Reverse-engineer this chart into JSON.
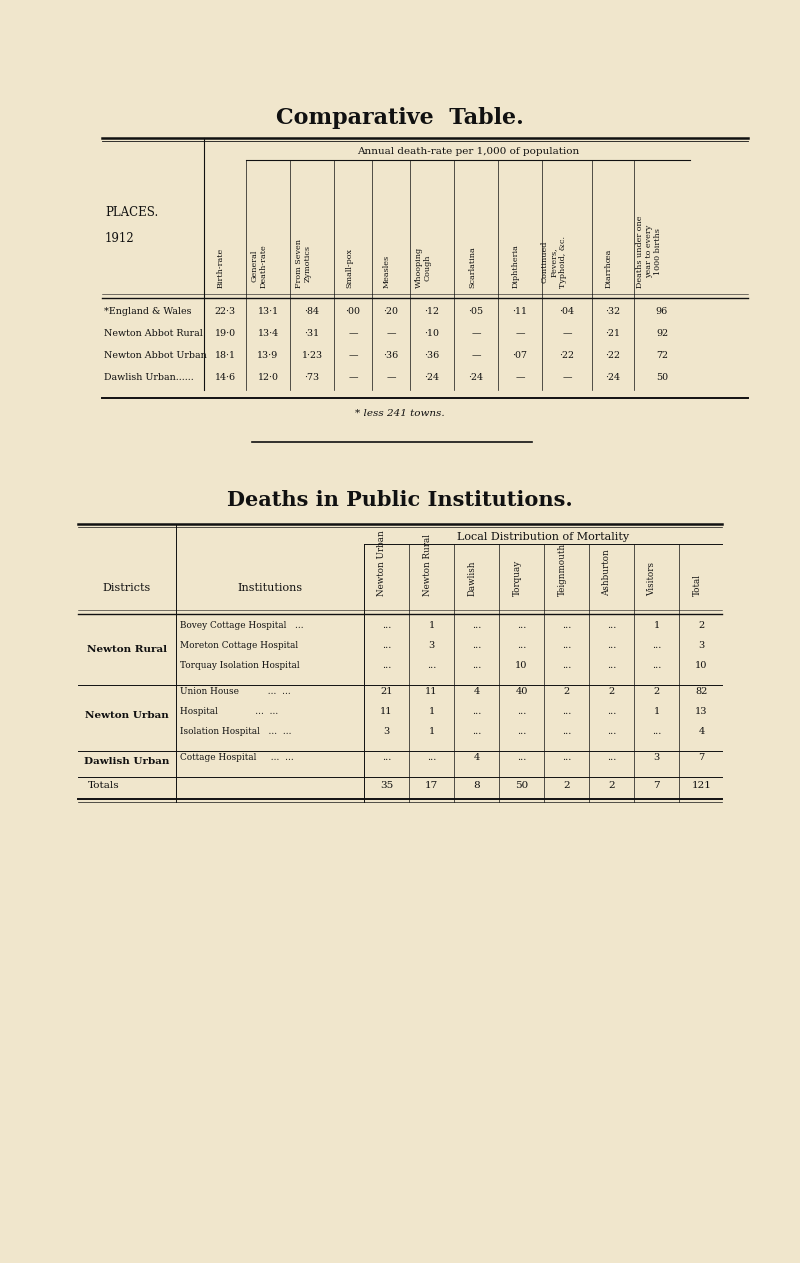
{
  "bg_color": "#f0e6cc",
  "title1": "Comparative  Table.",
  "title2": "Deaths in Public Institutions.",
  "separator_note": "* less 241 towns.",
  "table1": {
    "col_headers": [
      "Birth-rate",
      "General\nDeath-rate",
      "From Seven\nZymotics",
      "Small-pox",
      "Measles",
      "Whooping\nCough",
      "Scarlatina",
      "Diphtheria",
      "Continued\nFevers,\nTyphoid, &c.",
      "Diarrhœa",
      "Deaths under one\nyear to every\n1000 births"
    ],
    "annual_header": "Annual death-rate per 1,000 of population",
    "rows": [
      {
        "place": "*England & Wales",
        "values": [
          "22·3",
          "13·1",
          "·84",
          "·00",
          "·20",
          "·12",
          "·05",
          "·11",
          "·04",
          "·32",
          "96"
        ]
      },
      {
        "place": "Newton Abbot Rural",
        "values": [
          "19·0",
          "13·4",
          "·31",
          "—",
          "—",
          "·10",
          "—",
          "—",
          "—",
          "·21",
          "92"
        ]
      },
      {
        "place": "Newton Abbot Urban",
        "values": [
          "18·1",
          "13·9",
          "1·23",
          "—",
          "·36",
          "·36",
          "—",
          "·07",
          "·22",
          "·22",
          "72"
        ]
      },
      {
        "place": "Dawlish Urban......",
        "values": [
          "14·6",
          "12·0",
          "·73",
          "—",
          "—",
          "·24",
          "·24",
          "—",
          "—",
          "·24",
          "50"
        ]
      }
    ]
  },
  "table2": {
    "col_headers": [
      "Newton Urban",
      "Newton Rural",
      "Dawlish",
      "Torquay",
      "Teignmouth",
      "Ashburton",
      "Visitors",
      "Total"
    ],
    "local_dist_header": "Local Distribution of Mortality",
    "districts": [
      {
        "district": "Newton Rural",
        "institutions": [
          {
            "name": "Bovey Cottage Hospital   ...",
            "values": [
              "...",
              "1",
              "...",
              "...",
              "...",
              "...",
              "1",
              "2"
            ]
          },
          {
            "name": "Moreton Cottage Hospital",
            "values": [
              "...",
              "3",
              "...",
              "...",
              "...",
              "...",
              "...",
              "3"
            ]
          },
          {
            "name": "Torquay Isolation Hospital",
            "values": [
              "...",
              "...",
              "...",
              "10",
              "...",
              "...",
              "...",
              "10"
            ]
          }
        ]
      },
      {
        "district": "Newton Urban",
        "institutions": [
          {
            "name": "Union House          ...  ...",
            "values": [
              "21",
              "11",
              "4",
              "40",
              "2",
              "2",
              "2",
              "82"
            ]
          },
          {
            "name": "Hospital             ...  ...",
            "values": [
              "11",
              "1",
              "...",
              "...",
              "...",
              "...",
              "1",
              "13"
            ]
          },
          {
            "name": "Isolation Hospital   ...  ...",
            "values": [
              "3",
              "1",
              "...",
              "...",
              "...",
              "...",
              "...",
              "4"
            ]
          }
        ]
      },
      {
        "district": "Dawlish Urban",
        "institutions": [
          {
            "name": "Cottage Hospital     ...  ...",
            "values": [
              "...",
              "...",
              "4",
              "...",
              "...",
              "...",
              "3",
              "7"
            ]
          }
        ]
      }
    ],
    "totals": {
      "label": "Totals",
      "values": [
        "35",
        "17",
        "8",
        "50",
        "2",
        "2",
        "7",
        "121"
      ]
    }
  }
}
